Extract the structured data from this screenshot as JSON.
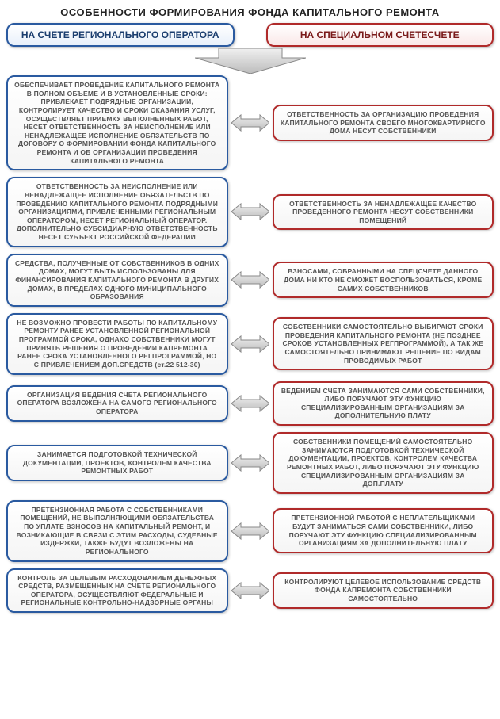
{
  "title": "ОСОБЕННОСТИ ФОРМИРОВАНИЯ ФОНДА КАПИТАЛЬНОГО РЕМОНТА",
  "header_left": "НА СЧЕТЕ РЕГИОНАЛЬНОГО ОПЕРАТОРА",
  "header_right": "НА СПЕЦИАЛЬНОМ СЧЕТЕСЧЕТЕ",
  "colors": {
    "left_border": "#2a5aa0",
    "right_border": "#b02a2a",
    "arrow_fill_light": "#f0f0f0",
    "arrow_fill_dark": "#bcbcbc",
    "arrow_stroke": "#888888",
    "text": "#555555",
    "title_text": "#222222"
  },
  "rows": [
    {
      "left": "ОБЕСПЕЧИВАЕТ ПРОВЕДЕНИЕ КАПИТАЛЬНОГО РЕМОНТА В ПОЛНОМ ОБЪЕМЕ И В УСТАНОВЛЕННЫЕ СРОКИ: ПРИВЛЕКАЕТ ПОДРЯДНЫЕ ОРГАНИЗАЦИИ, КОНТРОЛИРУЕТ КАЧЕСТВО И СРОКИ ОКАЗАНИЯ УСЛУГ, ОСУЩЕСТВЛЯЕТ ПРИЕМКУ ВЫПОЛНЕННЫХ РАБОТ, НЕСЕТ ОТВЕТСТВЕННОСТЬ ЗА НЕИСПОЛНЕНИЕ ИЛИ НЕНАДЛЕЖАЩЕЕ ИСПОЛНЕНИЕ ОБЯЗАТЕЛЬСТВ ПО ДОГОВОРУ О ФОРМИРОВАНИИ ФОНДА КАПИТАЛЬНОГО РЕМОНТА И ОБ ОРГАНИЗАЦИИ ПРОВЕДЕНИЯ КАПИТАЛЬНОГО РЕМОНТА",
      "right": "ОТВЕТСТВЕННОСТЬ ЗА ОРГАНИЗАЦИЮ ПРОВЕДЕНИЯ КАПИТАЛЬНОГО РЕМОНТА СВОЕГО МНОГОКВАРТИРНОГО ДОМА НЕСУТ СОБСТВЕННИКИ"
    },
    {
      "left": "ОТВЕТСТВЕННОСТЬ ЗА НЕИСПОЛНЕНИЕ ИЛИ НЕНАДЛЕЖАЩЕЕ ИСПОЛНЕНИЕ ОБЯЗАТЕЛЬСТВ ПО ПРОВЕДЕНИЮ КАПИТАЛЬНОГО РЕМОНТА ПОДРЯДНЫМИ ОРГАНИЗАЦИЯМИ, ПРИВЛЕЧЕННЫМИ РЕГИОНАЛЬНЫМ ОПЕРАТОРОМ, НЕСЕТ РЕГИОНАЛЬНЫЙ ОПЕРАТОР. ДОПОЛНИТЕЛЬНО СУБСИДИАРНУЮ ОТВЕТСТВЕННОСТЬ НЕСЕТ СУБЪЕКТ РОССИЙСКОЙ ФЕДЕРАЦИИ",
      "right": "ОТВЕТСТВЕННОСТЬ ЗА НЕНАДЛЕЖАЩЕЕ КАЧЕСТВО ПРОВЕДЕННОГО РЕМОНТА НЕСУТ СОБСТВЕННИКИ ПОМЕЩЕНИЙ"
    },
    {
      "left": "СРЕДСТВА, ПОЛУЧЕННЫЕ ОТ СОБСТВЕННИКОВ В ОДНИХ ДОМАХ, МОГУТ БЫТЬ ИСПОЛЬЗОВАНЫ ДЛЯ ФИНАНСИРОВАНИЯ КАПИТАЛЬНОГО РЕМОНТА В ДРУГИХ ДОМАХ, В ПРЕДЕЛАХ ОДНОГО МУНИЦИПАЛЬНОГО ОБРАЗОВАНИЯ",
      "right": "ВЗНОСАМИ, СОБРАННЫМИ НА СПЕЦСЧЕТЕ ДАННОГО ДОМА НИ КТО НЕ СМОЖЕТ ВОСПОЛЬЗОВАТЬСЯ, КРОМЕ САМИХ СОБСТВЕННИКОВ"
    },
    {
      "left": "НЕ ВОЗМОЖНО ПРОВЕСТИ РАБОТЫ ПО КАПИТАЛЬНОМУ РЕМОНТУ РАНЕЕ УСТАНОВЛЕННОЙ РЕГИОНАЛЬНОЙ ПРОГРАММОЙ СРОКА, ОДНАКО СОБСТВЕННИКИ МОГУТ ПРИНЯТЬ РЕШЕНИЯ О ПРОВЕДЕНИИ КАПРЕМОНТА РАНЕЕ СРОКА УСТАНОВЛЕННОГО РЕГПРОГРАММОЙ, НО С ПРИВЛЕЧЕНИЕМ ДОП.СРЕДСТВ (ст.22 512-30)",
      "right": "СОБСТВЕННИКИ САМОСТОЯТЕЛЬНО ВЫБИРАЮТ СРОКИ ПРОВЕДЕНИЯ КАПИТАЛЬНОГО РЕМОНТА (НЕ ПОЗДНЕЕ СРОКОВ УСТАНОВЛЕННЫХ РЕГПРОГРАММОЙ), А ТАК ЖЕ САМОСТОЯТЕЛЬНО ПРИНИМАЮТ РЕШЕНИЕ ПО ВИДАМ ПРОВОДИМЫХ РАБОТ"
    },
    {
      "left": "ОРГАНИЗАЦИЯ ВЕДЕНИЯ СЧЕТА РЕГИОНАЛЬНОГО ОПЕРАТОРА ВОЗЛОЖЕНА НА САМОГО РЕГИОНАЛЬНОГО ОПЕРАТОРА",
      "right": "ВЕДЕНИЕМ СЧЕТА ЗАНИМАЮТСЯ САМИ СОБСТВЕННИКИ, ЛИБО ПОРУЧАЮТ ЭТУ ФУНКЦИЮ СПЕЦИАЛИЗИРОВАННЫМ ОРГАНИЗАЦИЯМ ЗА ДОПОЛНИТЕЛЬНУЮ ПЛАТУ"
    },
    {
      "left": "ЗАНИМАЕТСЯ ПОДГОТОВКОЙ ТЕХНИЧЕСКОЙ ДОКУМЕНТАЦИИ, ПРОЕКТОВ, КОНТРОЛЕМ КАЧЕСТВА РЕМОНТНЫХ РАБОТ",
      "right": "СОБСТВЕННИКИ ПОМЕЩЕНИЙ САМОСТОЯТЕЛЬНО ЗАНИМАЮТСЯ ПОДГОТОВКОЙ ТЕХНИЧЕСКОЙ ДОКУМЕНТАЦИИ, ПРОЕКТОВ, КОНТРОЛЕМ КАЧЕСТВА РЕМОНТНЫХ РАБОТ, ЛИБО ПОРУЧАЮТ ЭТУ ФУНКЦИЮ СПЕЦИАЛИЗИРОВАННЫМ ОРГАНИЗАЦИЯМ ЗА ДОП.ПЛАТУ"
    },
    {
      "left": "ПРЕТЕНЗИОННАЯ РАБОТА С СОБСТВЕННИКАМИ ПОМЕЩЕНИЙ, НЕ ВЫПОЛНЯЮЩИМИ ОБЯЗАТЕЛЬСТВА ПО УПЛАТЕ ВЗНОСОВ НА КАПИТАЛЬНЫЙ РЕМОНТ, И ВОЗНИКАЮЩИЕ В СВЯЗИ С ЭТИМ РАСХОДЫ, СУДЕБНЫЕ ИЗДЕРЖКИ, ТАКЖЕ БУДУТ ВОЗЛОЖЕНЫ НА РЕГИОНАЛЬНОГО",
      "right": "ПРЕТЕНЗИОННОЙ РАБОТОЙ С НЕПЛАТЕЛЬЩИКАМИ БУДУТ ЗАНИМАТЬСЯ САМИ СОБСТВЕННИКИ, ЛИБО ПОРУЧАЮТ ЭТУ ФУНКЦИЮ СПЕЦИАЛИЗИРОВАННЫМ ОРГАНИЗАЦИЯМ ЗА ДОПОЛНИТЕЛЬНУЮ ПЛАТУ"
    },
    {
      "left": "КОНТРОЛЬ ЗА ЦЕЛЕВЫМ РАСХОДОВАНИЕМ ДЕНЕЖНЫХ СРЕДСТВ, РАЗМЕЩЕННЫХ НА СЧЕТЕ РЕГИОНАЛЬНОГО ОПЕРАТОРА, ОСУЩЕСТВЛЯЮТ ФЕДЕРАЛЬНЫЕ И РЕГИОНАЛЬНЫЕ КОНТРОЛЬНО-НАДЗОРНЫЕ ОРГАНЫ",
      "right": "КОНТРОЛИРУЮТ ЦЕЛЕВОЕ ИСПОЛЬЗОВАНИЕ СРЕДСТВ ФОНДА КАПРЕМОНТА СОБСТВЕННИКИ САМОСТОЯТЕЛЬНО"
    }
  ]
}
